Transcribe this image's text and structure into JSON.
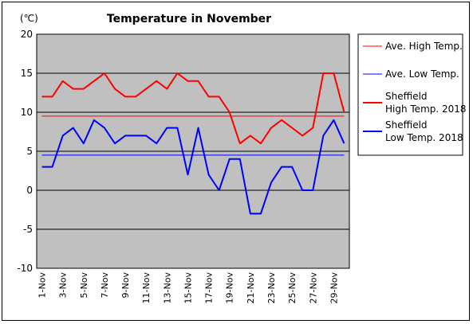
{
  "chart_data": {
    "type": "line",
    "title": "Temperature in November",
    "unit_label": "(℃)",
    "ylim": [
      -10,
      20
    ],
    "yticks": [
      -10,
      -5,
      0,
      5,
      10,
      15,
      20
    ],
    "x": [
      "1-Nov",
      "2-Nov",
      "3-Nov",
      "4-Nov",
      "5-Nov",
      "6-Nov",
      "7-Nov",
      "8-Nov",
      "9-Nov",
      "10-Nov",
      "11-Nov",
      "12-Nov",
      "13-Nov",
      "14-Nov",
      "15-Nov",
      "16-Nov",
      "17-Nov",
      "18-Nov",
      "19-Nov",
      "20-Nov",
      "21-Nov",
      "22-Nov",
      "23-Nov",
      "24-Nov",
      "25-Nov",
      "26-Nov",
      "27-Nov",
      "28-Nov",
      "29-Nov",
      "30-Nov"
    ],
    "xtick_labels": [
      "1-Nov",
      "3-Nov",
      "5-Nov",
      "7-Nov",
      "9-Nov",
      "11-Nov",
      "13-Nov",
      "15-Nov",
      "17-Nov",
      "19-Nov",
      "21-Nov",
      "23-Nov",
      "25-Nov",
      "27-Nov",
      "29-Nov"
    ],
    "grid": true,
    "legend_position": "right",
    "series": [
      {
        "name": "Ave. High Temp.",
        "color": "#ff0000",
        "kind": "constant",
        "value": 9.5
      },
      {
        "name": "Ave. Low Temp.",
        "color": "#0000ff",
        "kind": "constant",
        "value": 4.5
      },
      {
        "name": "Sheffield\nHigh Temp. 2018",
        "color": "#ff0000",
        "kind": "daily",
        "values": [
          12,
          12,
          14,
          13,
          13,
          14,
          15,
          13,
          12,
          12,
          13,
          14,
          13,
          15,
          14,
          14,
          12,
          12,
          10,
          6,
          7,
          6,
          8,
          9,
          8,
          7,
          8,
          15,
          15,
          10
        ]
      },
      {
        "name": "Sheffield\nLow Temp. 2018",
        "color": "#0000ff",
        "kind": "daily",
        "values": [
          3,
          3,
          7,
          8,
          6,
          9,
          8,
          6,
          7,
          7,
          7,
          6,
          8,
          8,
          2,
          8,
          2,
          0,
          4,
          4,
          -3,
          -3,
          1,
          3,
          3,
          0,
          0,
          7,
          9,
          6
        ]
      }
    ]
  }
}
